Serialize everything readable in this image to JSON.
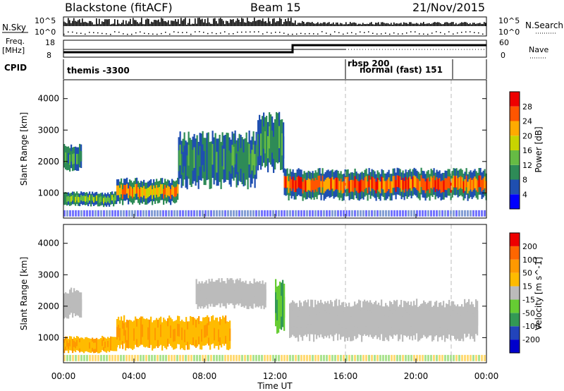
{
  "header": {
    "station": "Blackstone (fitACF)",
    "beam": "Beam 15",
    "date": "21/Nov/2015"
  },
  "top_panels": {
    "nsky_label": "N.Sky",
    "nsearch_label": "N.Search",
    "n_ticks_top": "10^5",
    "n_ticks_bottom": "10^0",
    "freq_label": "Freq.",
    "freq_unit": "[MHz]",
    "freq_ticks": [
      "18",
      "8"
    ],
    "nave_label": "Nave",
    "nave_ticks": [
      "60",
      "0"
    ],
    "cpid_label": "CPID",
    "cpid_segments": [
      {
        "label": "themis -3300",
        "start_hr": 0,
        "end_hr": 16
      },
      {
        "label": "rbsp 200",
        "start_hr": 16,
        "end_hr": 22
      },
      {
        "label": "normal (fast) 151",
        "start_hr": 16,
        "end_hr": 22
      }
    ]
  },
  "chart_data": [
    {
      "type": "heatmap",
      "panel": "power",
      "ylabel": "Slant Range [km]",
      "yticks": [
        "1000",
        "2000",
        "3000",
        "4000"
      ],
      "ylim": [
        200,
        4600
      ],
      "xlim": [
        0,
        24
      ],
      "colorbar_label": "Power [dB]",
      "colorbar_ticks": [
        "28",
        "24",
        "20",
        "16",
        "12",
        "8",
        "4"
      ],
      "colorbar_colors": [
        "#0000ff",
        "#1f4fb0",
        "#2e8b57",
        "#66bb44",
        "#c8d400",
        "#ffaa00",
        "#ff5500",
        "#ee0000"
      ],
      "bands": [
        {
          "start_hr": 0.0,
          "end_hr": 1.0,
          "range_low": 1750,
          "range_high": 2500,
          "level": 2
        },
        {
          "start_hr": 0.0,
          "end_hr": 3.0,
          "range_low": 600,
          "range_high": 1000,
          "level": 3
        },
        {
          "start_hr": 3.0,
          "end_hr": 6.5,
          "range_low": 700,
          "range_high": 1400,
          "level": 5
        },
        {
          "start_hr": 6.5,
          "end_hr": 11.0,
          "range_low": 1300,
          "range_high": 2800,
          "level": 2
        },
        {
          "start_hr": 11.0,
          "end_hr": 12.5,
          "range_low": 1800,
          "range_high": 3400,
          "level": 2
        },
        {
          "start_hr": 12.5,
          "end_hr": 24.0,
          "range_low": 850,
          "range_high": 1700,
          "level": 6
        }
      ]
    },
    {
      "type": "heatmap",
      "panel": "velocity",
      "xlabel": "Time UT",
      "ylabel": "Slant Range [km]",
      "yticks": [
        "1000",
        "2000",
        "3000",
        "4000"
      ],
      "ylim": [
        200,
        4600
      ],
      "xlim": [
        0,
        24
      ],
      "xticks": [
        "00:00",
        "04:00",
        "08:00",
        "12:00",
        "16:00",
        "20:00",
        "00:00"
      ],
      "colorbar_label": "Velocity [m s^-1]",
      "colorbar_ticks": [
        "200",
        "100",
        "50",
        "15",
        "-15",
        "-50",
        "-100",
        "-200"
      ],
      "colorbar_colors": [
        "#ee0000",
        "#ff6600",
        "#ff9900",
        "#ffbb00",
        "#bbbbbb",
        "#66cc33",
        "#339955",
        "#2244bb",
        "#0000cc"
      ],
      "bands": [
        {
          "start_hr": 0.0,
          "end_hr": 1.0,
          "range_low": 1700,
          "range_high": 2500,
          "value_class": "ground"
        },
        {
          "start_hr": 0.0,
          "end_hr": 3.0,
          "range_low": 550,
          "range_high": 1000,
          "value_class": "away"
        },
        {
          "start_hr": 3.0,
          "end_hr": 9.5,
          "range_low": 700,
          "range_high": 1600,
          "value_class": "away"
        },
        {
          "start_hr": 7.5,
          "end_hr": 11.5,
          "range_low": 2000,
          "range_high": 2800,
          "value_class": "ground"
        },
        {
          "start_hr": 12.0,
          "end_hr": 12.6,
          "range_low": 1200,
          "range_high": 2700,
          "value_class": "toward"
        },
        {
          "start_hr": 12.8,
          "end_hr": 23.5,
          "range_low": 1000,
          "range_high": 2100,
          "value_class": "ground"
        }
      ]
    }
  ]
}
